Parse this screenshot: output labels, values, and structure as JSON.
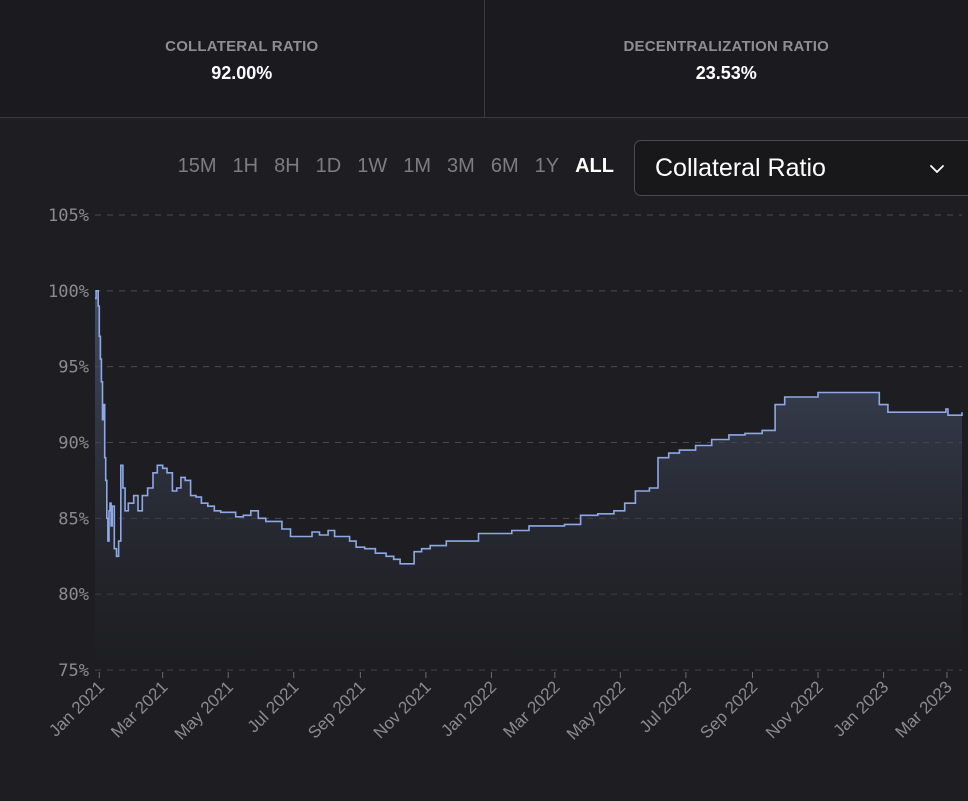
{
  "stats": [
    {
      "label": "COLLATERAL RATIO",
      "value": "92.00%"
    },
    {
      "label": "DECENTRALIZATION RATIO",
      "value": "23.53%"
    }
  ],
  "ranges": [
    "15M",
    "1H",
    "8H",
    "1D",
    "1W",
    "1M",
    "3M",
    "6M",
    "1Y",
    "ALL"
  ],
  "active_range": "ALL",
  "metric_select": {
    "selected": "Collateral Ratio",
    "icon": "chevron-down-icon"
  },
  "colors": {
    "line": "#8ea8e6",
    "area_top": "#4a5670",
    "grid": "#4a4a50",
    "background": "#1e1e22"
  },
  "chart_data": {
    "type": "area",
    "title": "",
    "xlabel": "",
    "ylabel": "",
    "ylim": [
      75,
      105
    ],
    "y_ticks": [
      "105%",
      "100%",
      "95%",
      "90%",
      "85%",
      "80%",
      "75%"
    ],
    "y_tick_values": [
      105,
      100,
      95,
      90,
      85,
      80,
      75
    ],
    "x_ticks": [
      "Jan 2021",
      "Mar 2021",
      "May 2021",
      "Jul 2021",
      "Sep 2021",
      "Nov 2021",
      "Jan 2022",
      "Mar 2022",
      "May 2022",
      "Jul 2022",
      "Sep 2022",
      "Nov 2022",
      "Jan 2023",
      "Mar 2023"
    ],
    "x_tick_dates": [
      "2021-01-01",
      "2021-03-01",
      "2021-05-01",
      "2021-07-01",
      "2021-09-01",
      "2021-11-01",
      "2022-01-01",
      "2022-03-01",
      "2022-05-01",
      "2022-07-01",
      "2022-09-01",
      "2022-11-01",
      "2023-01-01",
      "2023-03-01"
    ],
    "x_range": [
      "2020-12-28",
      "2023-03-15"
    ],
    "grid": true,
    "legend": "none",
    "series": [
      {
        "values": [
          [
            "2020-12-28",
            99.5
          ],
          [
            "2020-12-29",
            100.0
          ],
          [
            "2020-12-31",
            99.0
          ],
          [
            "2021-01-01",
            97.0
          ],
          [
            "2021-01-02",
            95.5
          ],
          [
            "2021-01-03",
            94.0
          ],
          [
            "2021-01-04",
            91.5
          ],
          [
            "2021-01-05",
            92.5
          ],
          [
            "2021-01-06",
            89.0
          ],
          [
            "2021-01-07",
            87.5
          ],
          [
            "2021-01-08",
            85.0
          ],
          [
            "2021-01-09",
            83.5
          ],
          [
            "2021-01-10",
            85.5
          ],
          [
            "2021-01-11",
            86.0
          ],
          [
            "2021-01-12",
            84.5
          ],
          [
            "2021-01-13",
            85.8
          ],
          [
            "2021-01-15",
            83.0
          ],
          [
            "2021-01-17",
            82.5
          ],
          [
            "2021-01-19",
            83.5
          ],
          [
            "2021-01-21",
            88.5
          ],
          [
            "2021-01-23",
            87.0
          ],
          [
            "2021-01-25",
            85.5
          ],
          [
            "2021-01-28",
            86.0
          ],
          [
            "2021-02-02",
            86.5
          ],
          [
            "2021-02-06",
            85.5
          ],
          [
            "2021-02-10",
            86.5
          ],
          [
            "2021-02-15",
            87.0
          ],
          [
            "2021-02-20",
            88.0
          ],
          [
            "2021-02-24",
            88.5
          ],
          [
            "2021-03-01",
            88.3
          ],
          [
            "2021-03-05",
            88.0
          ],
          [
            "2021-03-10",
            86.8
          ],
          [
            "2021-03-14",
            87.0
          ],
          [
            "2021-03-18",
            87.7
          ],
          [
            "2021-03-22",
            87.5
          ],
          [
            "2021-03-27",
            86.5
          ],
          [
            "2021-04-01",
            86.4
          ],
          [
            "2021-04-06",
            86.0
          ],
          [
            "2021-04-12",
            85.8
          ],
          [
            "2021-04-18",
            85.5
          ],
          [
            "2021-04-24",
            85.4
          ],
          [
            "2021-05-01",
            85.4
          ],
          [
            "2021-05-08",
            85.1
          ],
          [
            "2021-05-15",
            85.2
          ],
          [
            "2021-05-22",
            85.5
          ],
          [
            "2021-05-29",
            85.0
          ],
          [
            "2021-06-05",
            84.8
          ],
          [
            "2021-06-12",
            84.8
          ],
          [
            "2021-06-20",
            84.3
          ],
          [
            "2021-06-28",
            83.8
          ],
          [
            "2021-07-05",
            83.8
          ],
          [
            "2021-07-12",
            83.8
          ],
          [
            "2021-07-18",
            84.1
          ],
          [
            "2021-07-25",
            83.9
          ],
          [
            "2021-08-02",
            84.2
          ],
          [
            "2021-08-08",
            83.8
          ],
          [
            "2021-08-15",
            83.8
          ],
          [
            "2021-08-22",
            83.5
          ],
          [
            "2021-08-28",
            83.1
          ],
          [
            "2021-09-05",
            83.0
          ],
          [
            "2021-09-15",
            82.7
          ],
          [
            "2021-09-25",
            82.5
          ],
          [
            "2021-10-02",
            82.3
          ],
          [
            "2021-10-08",
            82.0
          ],
          [
            "2021-10-15",
            82.0
          ],
          [
            "2021-10-21",
            82.8
          ],
          [
            "2021-10-28",
            83.0
          ],
          [
            "2021-11-05",
            83.2
          ],
          [
            "2021-11-20",
            83.5
          ],
          [
            "2021-12-05",
            83.5
          ],
          [
            "2021-12-20",
            84.0
          ],
          [
            "2022-01-05",
            84.0
          ],
          [
            "2022-01-20",
            84.2
          ],
          [
            "2022-02-05",
            84.5
          ],
          [
            "2022-02-20",
            84.5
          ],
          [
            "2022-03-10",
            84.6
          ],
          [
            "2022-03-25",
            85.2
          ],
          [
            "2022-04-10",
            85.3
          ],
          [
            "2022-04-25",
            85.5
          ],
          [
            "2022-05-05",
            86.0
          ],
          [
            "2022-05-15",
            86.8
          ],
          [
            "2022-05-28",
            87.0
          ],
          [
            "2022-06-05",
            89.0
          ],
          [
            "2022-06-15",
            89.3
          ],
          [
            "2022-06-25",
            89.5
          ],
          [
            "2022-07-10",
            89.8
          ],
          [
            "2022-07-25",
            90.2
          ],
          [
            "2022-08-10",
            90.5
          ],
          [
            "2022-08-25",
            90.6
          ],
          [
            "2022-09-10",
            90.8
          ],
          [
            "2022-09-22",
            92.5
          ],
          [
            "2022-10-01",
            93.0
          ],
          [
            "2022-10-20",
            93.0
          ],
          [
            "2022-11-01",
            93.3
          ],
          [
            "2022-12-01",
            93.3
          ],
          [
            "2022-12-20",
            93.3
          ],
          [
            "2022-12-28",
            92.5
          ],
          [
            "2023-01-05",
            92.0
          ],
          [
            "2023-01-25",
            92.0
          ],
          [
            "2023-02-15",
            92.0
          ],
          [
            "2023-02-28",
            92.2
          ],
          [
            "2023-03-02",
            91.8
          ],
          [
            "2023-03-15",
            92.0
          ]
        ]
      }
    ]
  }
}
